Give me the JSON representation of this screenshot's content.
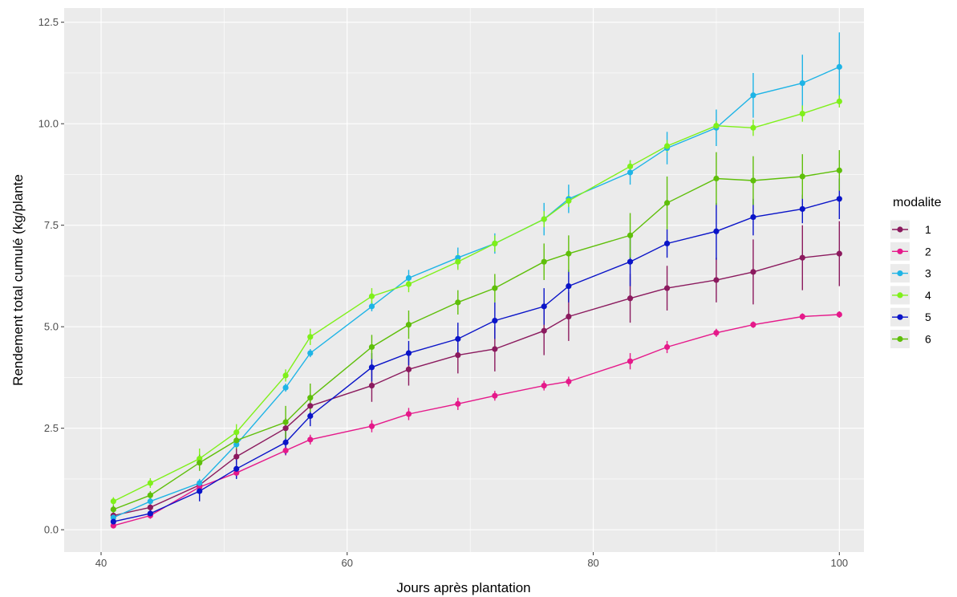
{
  "chart_data": {
    "type": "line",
    "xlabel": "Jours après plantation",
    "ylabel": "Rendement total cumulé (kg/plante",
    "xlim": [
      37,
      102
    ],
    "ylim": [
      -0.55,
      12.85
    ],
    "x_ticks": [
      40,
      60,
      80,
      100
    ],
    "y_ticks": [
      0.0,
      2.5,
      5.0,
      7.5,
      10.0,
      12.5
    ],
    "x_tick_labels": [
      "40",
      "60",
      "80",
      "100"
    ],
    "y_tick_labels": [
      "0.0",
      "2.5",
      "5.0",
      "7.5",
      "10.0",
      "12.5"
    ],
    "grid": true,
    "legend": {
      "title": "modalite",
      "position": "right"
    },
    "x": [
      41,
      44,
      48,
      51,
      55,
      57,
      62,
      65,
      69,
      72,
      76,
      78,
      83,
      86,
      90,
      93,
      97,
      100
    ],
    "series": [
      {
        "name": "1",
        "color": "#8b1a5e",
        "values": [
          0.35,
          0.55,
          1.1,
          1.8,
          2.5,
          3.05,
          3.55,
          3.95,
          4.3,
          4.45,
          4.9,
          5.25,
          5.7,
          5.95,
          6.15,
          6.35,
          6.7,
          6.8
        ],
        "errors": [
          0.08,
          0.1,
          0.15,
          0.2,
          0.25,
          0.3,
          0.4,
          0.4,
          0.45,
          0.55,
          0.6,
          0.6,
          0.6,
          0.55,
          0.55,
          0.8,
          0.8,
          0.8
        ]
      },
      {
        "name": "2",
        "color": "#e5198a",
        "values": [
          0.1,
          0.35,
          1.05,
          1.4,
          1.95,
          2.22,
          2.55,
          2.85,
          3.1,
          3.3,
          3.55,
          3.65,
          4.15,
          4.5,
          4.85,
          5.05,
          5.25,
          5.3
        ],
        "errors": [
          0.05,
          0.08,
          0.1,
          0.12,
          0.12,
          0.12,
          0.15,
          0.15,
          0.15,
          0.12,
          0.12,
          0.12,
          0.2,
          0.15,
          0.1,
          0.08,
          0.08,
          0.08
        ]
      },
      {
        "name": "3",
        "color": "#1eb4e6",
        "values": [
          0.3,
          0.7,
          1.15,
          2.1,
          3.5,
          4.35,
          5.5,
          6.2,
          6.7,
          7.05,
          7.65,
          8.15,
          8.8,
          9.4,
          9.9,
          10.7,
          11.0,
          11.4
        ],
        "errors": [
          0.05,
          0.08,
          0.1,
          0.1,
          0.1,
          0.1,
          0.12,
          0.2,
          0.25,
          0.25,
          0.4,
          0.35,
          0.3,
          0.4,
          0.45,
          0.55,
          0.7,
          0.85
        ]
      },
      {
        "name": "4",
        "color": "#7ff01a",
        "values": [
          0.7,
          1.15,
          1.75,
          2.4,
          3.8,
          4.75,
          5.75,
          6.05,
          6.6,
          7.05,
          7.65,
          8.1,
          8.95,
          9.45,
          9.95,
          9.9,
          10.25,
          10.55
        ],
        "errors": [
          0.1,
          0.12,
          0.25,
          0.2,
          0.15,
          0.2,
          0.2,
          0.2,
          0.2,
          0.2,
          0.2,
          0.15,
          0.15,
          0.15,
          0.12,
          0.2,
          0.2,
          0.15
        ]
      },
      {
        "name": "5",
        "color": "#0a14c8",
        "values": [
          0.2,
          0.4,
          0.95,
          1.5,
          2.15,
          2.8,
          4.0,
          4.35,
          4.7,
          5.15,
          5.5,
          6.0,
          6.6,
          7.05,
          7.35,
          7.7,
          7.9,
          8.15
        ],
        "errors": [
          0.1,
          0.1,
          0.25,
          0.25,
          0.3,
          0.25,
          0.35,
          0.3,
          0.4,
          0.45,
          0.45,
          0.4,
          0.6,
          0.35,
          0.7,
          0.45,
          0.35,
          0.5
        ]
      },
      {
        "name": "6",
        "color": "#5fbf0a",
        "values": [
          0.5,
          0.85,
          1.65,
          2.2,
          2.65,
          3.25,
          4.5,
          5.05,
          5.6,
          5.95,
          6.6,
          6.8,
          7.25,
          8.05,
          8.65,
          8.6,
          8.7,
          8.85
        ],
        "errors": [
          0.1,
          0.1,
          0.2,
          0.2,
          0.4,
          0.35,
          0.3,
          0.35,
          0.3,
          0.35,
          0.45,
          0.45,
          0.55,
          0.65,
          0.65,
          0.6,
          0.55,
          0.5
        ]
      }
    ]
  }
}
